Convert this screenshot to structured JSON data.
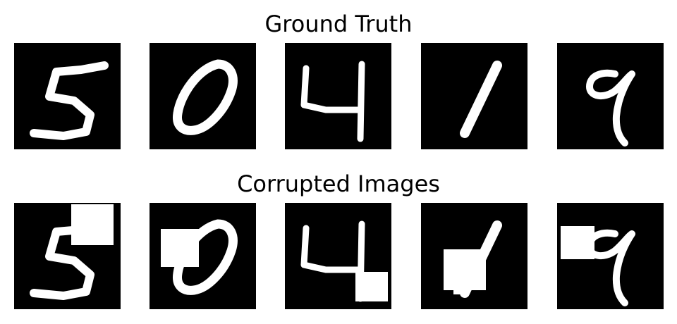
{
  "rows": [
    {
      "title": "Ground Truth",
      "corrupted": false
    },
    {
      "title": "Corrupted Images",
      "corrupted": true
    }
  ],
  "digits": [
    "5",
    "0",
    "4",
    "1",
    "9"
  ],
  "colors": {
    "background": "#ffffff",
    "tile": "#000000",
    "ink": "#ffffff"
  }
}
